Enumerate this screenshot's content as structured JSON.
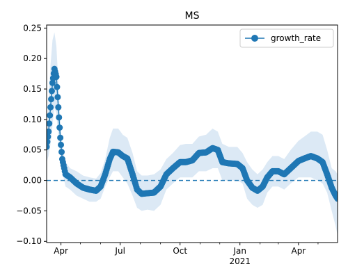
{
  "chart_data": {
    "type": "line",
    "title": "MS",
    "xlabel": "",
    "ylabel": "",
    "x_range": [
      "2020-03-10",
      "2021-05-31"
    ],
    "ylim": [
      -0.102,
      0.255
    ],
    "y_ticks": [
      -0.1,
      -0.05,
      0.0,
      0.05,
      0.1,
      0.15,
      0.2,
      0.25
    ],
    "y_tick_labels": [
      "−0.10",
      "−0.05",
      "0.00",
      "0.05",
      "0.10",
      "0.15",
      "0.20",
      "0.25"
    ],
    "x_major_ticks": [
      {
        "date": "2020-04-01",
        "label": "Apr",
        "sublabel": ""
      },
      {
        "date": "2020-07-01",
        "label": "Jul",
        "sublabel": ""
      },
      {
        "date": "2020-10-01",
        "label": "Oct",
        "sublabel": ""
      },
      {
        "date": "2021-01-01",
        "label": "Jan",
        "sublabel": "2021"
      },
      {
        "date": "2021-04-01",
        "label": "Apr",
        "sublabel": ""
      }
    ],
    "x_minor_ticks": [
      "2020-05-01",
      "2020-06-01",
      "2020-08-01",
      "2020-09-01",
      "2020-11-01",
      "2020-12-01",
      "2021-02-01",
      "2021-03-01",
      "2021-05-01"
    ],
    "grid": false,
    "legend_position": "top-right",
    "reference_line": {
      "y": 0,
      "style": "dashed",
      "color": "#1f77b4"
    },
    "series": [
      {
        "name": "growth_rate",
        "color": "#1f77b4",
        "marker": "circle",
        "band_color": "#dce9f5",
        "points": [
          {
            "x": "2020-03-10",
            "y": 0.055,
            "lo": 0.03,
            "hi": 0.08
          },
          {
            "x": "2020-03-13",
            "y": 0.08,
            "lo": 0.04,
            "hi": 0.13
          },
          {
            "x": "2020-03-16",
            "y": 0.12,
            "lo": 0.06,
            "hi": 0.19
          },
          {
            "x": "2020-03-19",
            "y": 0.16,
            "lo": 0.09,
            "hi": 0.23
          },
          {
            "x": "2020-03-22",
            "y": 0.183,
            "lo": 0.12,
            "hi": 0.243
          },
          {
            "x": "2020-03-25",
            "y": 0.17,
            "lo": 0.11,
            "hi": 0.22
          },
          {
            "x": "2020-03-28",
            "y": 0.12,
            "lo": 0.07,
            "hi": 0.16
          },
          {
            "x": "2020-03-31",
            "y": 0.07,
            "lo": 0.04,
            "hi": 0.1
          },
          {
            "x": "2020-04-03",
            "y": 0.035,
            "lo": 0.015,
            "hi": 0.055
          },
          {
            "x": "2020-04-08",
            "y": 0.01,
            "lo": -0.01,
            "hi": 0.03
          },
          {
            "x": "2020-04-15",
            "y": 0.005,
            "lo": -0.015,
            "hi": 0.02
          },
          {
            "x": "2020-04-25",
            "y": -0.005,
            "lo": -0.025,
            "hi": 0.015
          },
          {
            "x": "2020-05-05",
            "y": -0.012,
            "lo": -0.03,
            "hi": 0.008
          },
          {
            "x": "2020-05-15",
            "y": -0.015,
            "lo": -0.035,
            "hi": 0.005
          },
          {
            "x": "2020-05-25",
            "y": -0.017,
            "lo": -0.035,
            "hi": 0.003
          },
          {
            "x": "2020-06-01",
            "y": -0.01,
            "lo": -0.03,
            "hi": 0.012
          },
          {
            "x": "2020-06-08",
            "y": 0.01,
            "lo": -0.01,
            "hi": 0.035
          },
          {
            "x": "2020-06-15",
            "y": 0.035,
            "lo": 0.005,
            "hi": 0.07
          },
          {
            "x": "2020-06-20",
            "y": 0.047,
            "lo": 0.015,
            "hi": 0.085
          },
          {
            "x": "2020-06-28",
            "y": 0.046,
            "lo": 0.015,
            "hi": 0.085
          },
          {
            "x": "2020-07-05",
            "y": 0.04,
            "lo": 0.005,
            "hi": 0.075
          },
          {
            "x": "2020-07-12",
            "y": 0.036,
            "lo": -0.005,
            "hi": 0.07
          },
          {
            "x": "2020-07-20",
            "y": 0.01,
            "lo": -0.025,
            "hi": 0.045
          },
          {
            "x": "2020-07-27",
            "y": -0.015,
            "lo": -0.045,
            "hi": 0.015
          },
          {
            "x": "2020-08-03",
            "y": -0.022,
            "lo": -0.05,
            "hi": 0.008
          },
          {
            "x": "2020-08-12",
            "y": -0.021,
            "lo": -0.048,
            "hi": 0.008
          },
          {
            "x": "2020-08-22",
            "y": -0.02,
            "lo": -0.05,
            "hi": 0.01
          },
          {
            "x": "2020-09-01",
            "y": -0.01,
            "lo": -0.04,
            "hi": 0.018
          },
          {
            "x": "2020-09-10",
            "y": 0.01,
            "lo": -0.015,
            "hi": 0.035
          },
          {
            "x": "2020-09-20",
            "y": 0.02,
            "lo": -0.005,
            "hi": 0.045
          },
          {
            "x": "2020-10-01",
            "y": 0.03,
            "lo": 0.005,
            "hi": 0.058
          },
          {
            "x": "2020-10-10",
            "y": 0.03,
            "lo": 0.005,
            "hi": 0.06
          },
          {
            "x": "2020-10-20",
            "y": 0.033,
            "lo": 0.005,
            "hi": 0.06
          },
          {
            "x": "2020-10-30",
            "y": 0.045,
            "lo": 0.015,
            "hi": 0.072
          },
          {
            "x": "2020-11-10",
            "y": 0.046,
            "lo": 0.015,
            "hi": 0.075
          },
          {
            "x": "2020-11-20",
            "y": 0.053,
            "lo": 0.02,
            "hi": 0.085
          },
          {
            "x": "2020-11-28",
            "y": 0.05,
            "lo": 0.02,
            "hi": 0.08
          },
          {
            "x": "2020-12-05",
            "y": 0.03,
            "lo": 0.0,
            "hi": 0.06
          },
          {
            "x": "2020-12-15",
            "y": 0.028,
            "lo": 0.0,
            "hi": 0.055
          },
          {
            "x": "2020-12-28",
            "y": 0.027,
            "lo": 0.0,
            "hi": 0.055
          },
          {
            "x": "2021-01-05",
            "y": 0.02,
            "lo": -0.005,
            "hi": 0.045
          },
          {
            "x": "2021-01-12",
            "y": 0.0,
            "lo": -0.03,
            "hi": 0.03
          },
          {
            "x": "2021-01-20",
            "y": -0.012,
            "lo": -0.04,
            "hi": 0.018
          },
          {
            "x": "2021-01-28",
            "y": -0.017,
            "lo": -0.045,
            "hi": 0.01
          },
          {
            "x": "2021-02-05",
            "y": -0.01,
            "lo": -0.04,
            "hi": 0.018
          },
          {
            "x": "2021-02-12",
            "y": 0.005,
            "lo": -0.02,
            "hi": 0.03
          },
          {
            "x": "2021-02-20",
            "y": 0.015,
            "lo": -0.01,
            "hi": 0.04
          },
          {
            "x": "2021-03-01",
            "y": 0.015,
            "lo": -0.01,
            "hi": 0.04
          },
          {
            "x": "2021-03-10",
            "y": 0.01,
            "lo": -0.015,
            "hi": 0.035
          },
          {
            "x": "2021-03-20",
            "y": 0.02,
            "lo": -0.005,
            "hi": 0.05
          },
          {
            "x": "2021-04-01",
            "y": 0.032,
            "lo": 0.005,
            "hi": 0.065
          },
          {
            "x": "2021-04-10",
            "y": 0.036,
            "lo": 0.005,
            "hi": 0.072
          },
          {
            "x": "2021-04-20",
            "y": 0.04,
            "lo": 0.005,
            "hi": 0.08
          },
          {
            "x": "2021-04-30",
            "y": 0.036,
            "lo": 0.0,
            "hi": 0.08
          },
          {
            "x": "2021-05-08",
            "y": 0.03,
            "lo": -0.005,
            "hi": 0.075
          },
          {
            "x": "2021-05-15",
            "y": 0.01,
            "lo": -0.02,
            "hi": 0.05
          },
          {
            "x": "2021-05-22",
            "y": -0.012,
            "lo": -0.05,
            "hi": 0.02
          },
          {
            "x": "2021-05-28",
            "y": -0.025,
            "lo": -0.075,
            "hi": 0.015
          },
          {
            "x": "2021-05-31",
            "y": -0.03,
            "lo": -0.09,
            "hi": 0.01
          }
        ]
      }
    ]
  }
}
